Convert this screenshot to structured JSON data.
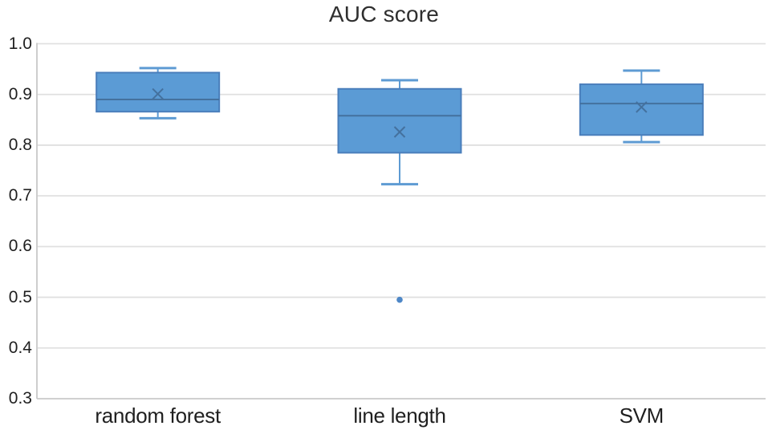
{
  "chart_data": {
    "type": "box",
    "title": "AUC score",
    "xlabel": "",
    "ylabel": "",
    "categories": [
      "random forest",
      "line length",
      "SVM"
    ],
    "ylim": [
      0.3,
      1.0
    ],
    "yticks": [
      1.0,
      0.9,
      0.8,
      0.7,
      0.6,
      0.5,
      0.4,
      0.3
    ],
    "ytick_labels": [
      "1.0",
      "0.9",
      "0.8",
      "0.7",
      "0.6",
      "0.5",
      "0.4",
      "0.3"
    ],
    "grid": true,
    "legend": false,
    "series": [
      {
        "name": "random forest",
        "whisker_low": 0.853,
        "q1": 0.866,
        "median": 0.89,
        "mean": 0.901,
        "q3": 0.943,
        "whisker_high": 0.952,
        "outliers": []
      },
      {
        "name": "line length",
        "whisker_low": 0.723,
        "q1": 0.785,
        "median": 0.858,
        "mean": 0.826,
        "q3": 0.911,
        "whisker_high": 0.928,
        "outliers": [
          0.495
        ]
      },
      {
        "name": "SVM",
        "whisker_low": 0.806,
        "q1": 0.82,
        "median": 0.882,
        "mean": 0.875,
        "q3": 0.92,
        "whisker_high": 0.947,
        "outliers": []
      }
    ],
    "colors": {
      "box_fill": "#5B9BD5",
      "box_border": "#4A7EBB",
      "median_line": "#44719E",
      "whisker": "#5E9BD3",
      "mean_marker": "#44719E",
      "outlier": "#4E87C7",
      "gridline": "#E0E0E0",
      "axis_line": "#C9C9C9",
      "tick_text": "#1f1f1f",
      "title_text": "#2f2f2f"
    }
  }
}
